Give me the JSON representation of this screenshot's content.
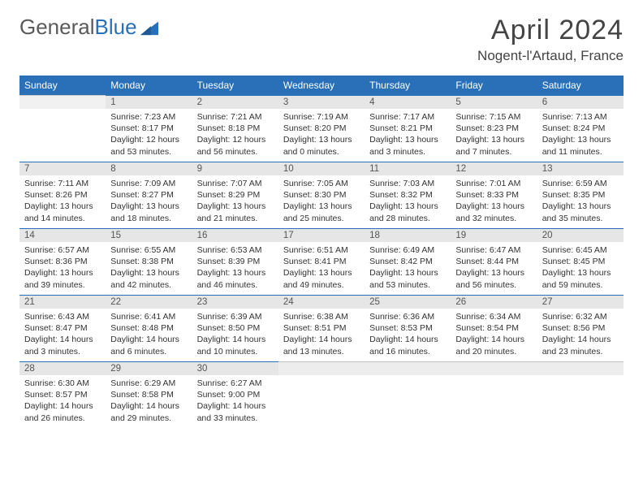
{
  "logo": {
    "text1": "General",
    "text2": "Blue"
  },
  "title": "April 2024",
  "location": "Nogent-l'Artaud, France",
  "headers": [
    "Sunday",
    "Monday",
    "Tuesday",
    "Wednesday",
    "Thursday",
    "Friday",
    "Saturday"
  ],
  "header_bg": "#2970b8",
  "header_fg": "#ffffff",
  "daynum_bg": "#e6e6e6",
  "rule_color": "#2970b8",
  "start_offset": 1,
  "days": [
    {
      "n": 1,
      "sr": "7:23 AM",
      "ss": "8:17 PM",
      "dl": "12 hours and 53 minutes."
    },
    {
      "n": 2,
      "sr": "7:21 AM",
      "ss": "8:18 PM",
      "dl": "12 hours and 56 minutes."
    },
    {
      "n": 3,
      "sr": "7:19 AM",
      "ss": "8:20 PM",
      "dl": "13 hours and 0 minutes."
    },
    {
      "n": 4,
      "sr": "7:17 AM",
      "ss": "8:21 PM",
      "dl": "13 hours and 3 minutes."
    },
    {
      "n": 5,
      "sr": "7:15 AM",
      "ss": "8:23 PM",
      "dl": "13 hours and 7 minutes."
    },
    {
      "n": 6,
      "sr": "7:13 AM",
      "ss": "8:24 PM",
      "dl": "13 hours and 11 minutes."
    },
    {
      "n": 7,
      "sr": "7:11 AM",
      "ss": "8:26 PM",
      "dl": "13 hours and 14 minutes."
    },
    {
      "n": 8,
      "sr": "7:09 AM",
      "ss": "8:27 PM",
      "dl": "13 hours and 18 minutes."
    },
    {
      "n": 9,
      "sr": "7:07 AM",
      "ss": "8:29 PM",
      "dl": "13 hours and 21 minutes."
    },
    {
      "n": 10,
      "sr": "7:05 AM",
      "ss": "8:30 PM",
      "dl": "13 hours and 25 minutes."
    },
    {
      "n": 11,
      "sr": "7:03 AM",
      "ss": "8:32 PM",
      "dl": "13 hours and 28 minutes."
    },
    {
      "n": 12,
      "sr": "7:01 AM",
      "ss": "8:33 PM",
      "dl": "13 hours and 32 minutes."
    },
    {
      "n": 13,
      "sr": "6:59 AM",
      "ss": "8:35 PM",
      "dl": "13 hours and 35 minutes."
    },
    {
      "n": 14,
      "sr": "6:57 AM",
      "ss": "8:36 PM",
      "dl": "13 hours and 39 minutes."
    },
    {
      "n": 15,
      "sr": "6:55 AM",
      "ss": "8:38 PM",
      "dl": "13 hours and 42 minutes."
    },
    {
      "n": 16,
      "sr": "6:53 AM",
      "ss": "8:39 PM",
      "dl": "13 hours and 46 minutes."
    },
    {
      "n": 17,
      "sr": "6:51 AM",
      "ss": "8:41 PM",
      "dl": "13 hours and 49 minutes."
    },
    {
      "n": 18,
      "sr": "6:49 AM",
      "ss": "8:42 PM",
      "dl": "13 hours and 53 minutes."
    },
    {
      "n": 19,
      "sr": "6:47 AM",
      "ss": "8:44 PM",
      "dl": "13 hours and 56 minutes."
    },
    {
      "n": 20,
      "sr": "6:45 AM",
      "ss": "8:45 PM",
      "dl": "13 hours and 59 minutes."
    },
    {
      "n": 21,
      "sr": "6:43 AM",
      "ss": "8:47 PM",
      "dl": "14 hours and 3 minutes."
    },
    {
      "n": 22,
      "sr": "6:41 AM",
      "ss": "8:48 PM",
      "dl": "14 hours and 6 minutes."
    },
    {
      "n": 23,
      "sr": "6:39 AM",
      "ss": "8:50 PM",
      "dl": "14 hours and 10 minutes."
    },
    {
      "n": 24,
      "sr": "6:38 AM",
      "ss": "8:51 PM",
      "dl": "14 hours and 13 minutes."
    },
    {
      "n": 25,
      "sr": "6:36 AM",
      "ss": "8:53 PM",
      "dl": "14 hours and 16 minutes."
    },
    {
      "n": 26,
      "sr": "6:34 AM",
      "ss": "8:54 PM",
      "dl": "14 hours and 20 minutes."
    },
    {
      "n": 27,
      "sr": "6:32 AM",
      "ss": "8:56 PM",
      "dl": "14 hours and 23 minutes."
    },
    {
      "n": 28,
      "sr": "6:30 AM",
      "ss": "8:57 PM",
      "dl": "14 hours and 26 minutes."
    },
    {
      "n": 29,
      "sr": "6:29 AM",
      "ss": "8:58 PM",
      "dl": "14 hours and 29 minutes."
    },
    {
      "n": 30,
      "sr": "6:27 AM",
      "ss": "9:00 PM",
      "dl": "14 hours and 33 minutes."
    }
  ],
  "labels": {
    "sunrise": "Sunrise:",
    "sunset": "Sunset:",
    "daylight": "Daylight:"
  }
}
